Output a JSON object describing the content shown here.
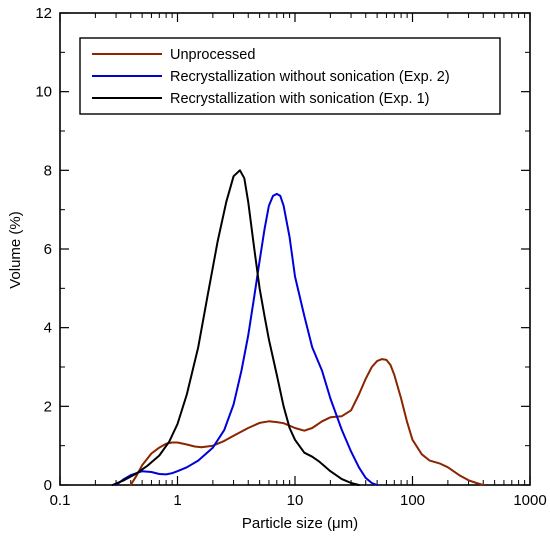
{
  "chart_data": {
    "type": "line",
    "title": "",
    "xlabel": "Particle size (μm)",
    "ylabel": "Volume (%)",
    "x_scale": "log",
    "xlim": [
      0.1,
      1000
    ],
    "ylim": [
      0,
      12
    ],
    "x_ticks": [
      0.1,
      1,
      10,
      100,
      1000
    ],
    "x_tick_labels": [
      "0.1",
      "1",
      "10",
      "100",
      "1000"
    ],
    "y_ticks": [
      0,
      2,
      4,
      6,
      8,
      10,
      12
    ],
    "y_tick_labels": [
      "0",
      "2",
      "4",
      "6",
      "8",
      "10",
      "12"
    ],
    "grid": false,
    "legend_position": "top-left",
    "series": [
      {
        "name": "Unprocessed",
        "color": "#8b2500",
        "points": [
          [
            0.4,
            0.0
          ],
          [
            0.45,
            0.25
          ],
          [
            0.5,
            0.5
          ],
          [
            0.6,
            0.8
          ],
          [
            0.7,
            0.95
          ],
          [
            0.8,
            1.05
          ],
          [
            0.9,
            1.08
          ],
          [
            1.0,
            1.08
          ],
          [
            1.2,
            1.03
          ],
          [
            1.4,
            0.98
          ],
          [
            1.6,
            0.96
          ],
          [
            2.0,
            1.0
          ],
          [
            2.5,
            1.12
          ],
          [
            3.0,
            1.25
          ],
          [
            4.0,
            1.45
          ],
          [
            5.0,
            1.58
          ],
          [
            6.0,
            1.62
          ],
          [
            7.0,
            1.6
          ],
          [
            8.0,
            1.57
          ],
          [
            10.0,
            1.45
          ],
          [
            12.0,
            1.38
          ],
          [
            14.0,
            1.45
          ],
          [
            17.0,
            1.62
          ],
          [
            20.0,
            1.72
          ],
          [
            25.0,
            1.75
          ],
          [
            30.0,
            1.9
          ],
          [
            35.0,
            2.3
          ],
          [
            40.0,
            2.7
          ],
          [
            45.0,
            3.0
          ],
          [
            50.0,
            3.15
          ],
          [
            55.0,
            3.2
          ],
          [
            60.0,
            3.18
          ],
          [
            65.0,
            3.05
          ],
          [
            70.0,
            2.8
          ],
          [
            80.0,
            2.2
          ],
          [
            90.0,
            1.6
          ],
          [
            100.0,
            1.15
          ],
          [
            120.0,
            0.78
          ],
          [
            140.0,
            0.62
          ],
          [
            170.0,
            0.55
          ],
          [
            200.0,
            0.45
          ],
          [
            250.0,
            0.25
          ],
          [
            300.0,
            0.12
          ],
          [
            350.0,
            0.05
          ],
          [
            400.0,
            0.0
          ]
        ]
      },
      {
        "name": "Recrystallization without sonication (Exp. 2)",
        "color": "#0000dd",
        "points": [
          [
            0.3,
            0.0
          ],
          [
            0.35,
            0.15
          ],
          [
            0.4,
            0.25
          ],
          [
            0.5,
            0.35
          ],
          [
            0.6,
            0.33
          ],
          [
            0.7,
            0.28
          ],
          [
            0.8,
            0.27
          ],
          [
            0.9,
            0.3
          ],
          [
            1.0,
            0.35
          ],
          [
            1.2,
            0.45
          ],
          [
            1.5,
            0.62
          ],
          [
            2.0,
            0.95
          ],
          [
            2.5,
            1.4
          ],
          [
            3.0,
            2.05
          ],
          [
            3.5,
            2.9
          ],
          [
            4.0,
            3.8
          ],
          [
            4.5,
            4.8
          ],
          [
            5.0,
            5.7
          ],
          [
            5.5,
            6.5
          ],
          [
            6.0,
            7.1
          ],
          [
            6.5,
            7.35
          ],
          [
            7.0,
            7.4
          ],
          [
            7.5,
            7.35
          ],
          [
            8.0,
            7.1
          ],
          [
            9.0,
            6.3
          ],
          [
            10.0,
            5.3
          ],
          [
            12.0,
            4.3
          ],
          [
            14.0,
            3.5
          ],
          [
            17.0,
            2.9
          ],
          [
            20.0,
            2.2
          ],
          [
            25.0,
            1.4
          ],
          [
            30.0,
            0.85
          ],
          [
            35.0,
            0.45
          ],
          [
            40.0,
            0.18
          ],
          [
            45.0,
            0.05
          ],
          [
            50.0,
            0.0
          ]
        ]
      },
      {
        "name": "Recrystallization with sonication (Exp. 1)",
        "color": "#000000",
        "points": [
          [
            0.28,
            0.0
          ],
          [
            0.35,
            0.12
          ],
          [
            0.45,
            0.3
          ],
          [
            0.55,
            0.48
          ],
          [
            0.7,
            0.75
          ],
          [
            0.85,
            1.1
          ],
          [
            1.0,
            1.55
          ],
          [
            1.2,
            2.3
          ],
          [
            1.5,
            3.5
          ],
          [
            1.8,
            4.8
          ],
          [
            2.2,
            6.2
          ],
          [
            2.6,
            7.2
          ],
          [
            3.0,
            7.85
          ],
          [
            3.4,
            8.0
          ],
          [
            3.7,
            7.8
          ],
          [
            4.0,
            7.2
          ],
          [
            4.5,
            6.0
          ],
          [
            5.0,
            5.0
          ],
          [
            5.5,
            4.3
          ],
          [
            6.0,
            3.7
          ],
          [
            7.0,
            2.8
          ],
          [
            8.0,
            2.0
          ],
          [
            9.0,
            1.45
          ],
          [
            10.0,
            1.15
          ],
          [
            12.0,
            0.82
          ],
          [
            14.0,
            0.72
          ],
          [
            16.0,
            0.6
          ],
          [
            20.0,
            0.35
          ],
          [
            25.0,
            0.15
          ],
          [
            30.0,
            0.05
          ],
          [
            35.0,
            0.0
          ]
        ]
      }
    ]
  }
}
